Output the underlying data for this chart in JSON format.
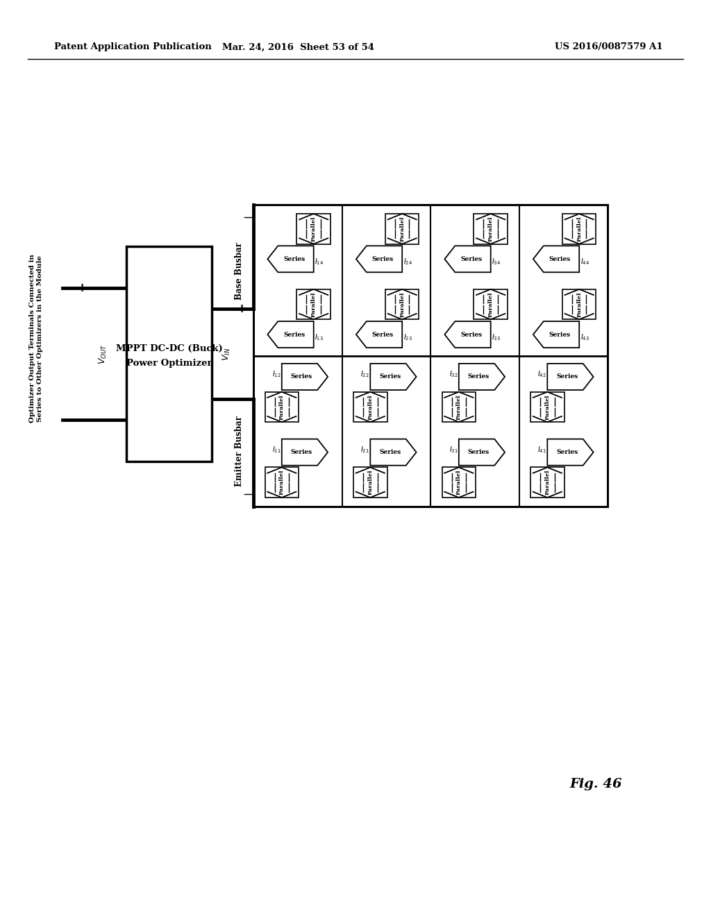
{
  "header_left": "Patent Application Publication",
  "header_mid": "Mar. 24, 2016  Sheet 53 of 54",
  "header_right": "US 2016/0087579 A1",
  "fig_label": "Fig. 46",
  "side_label_1": "Optimizer Output Terminals Connected in",
  "side_label_2": "Series to Other Optimizers in the Module",
  "box_title_1": "MPPT DC-DC (Buck)",
  "box_title_2": "Power Optimizer",
  "base_busbar": "Base Busbar",
  "emitter_busbar": "Emitter Busbar",
  "bg_color": "#ffffff",
  "lc": "#000000",
  "fig46": "Fig. 46"
}
